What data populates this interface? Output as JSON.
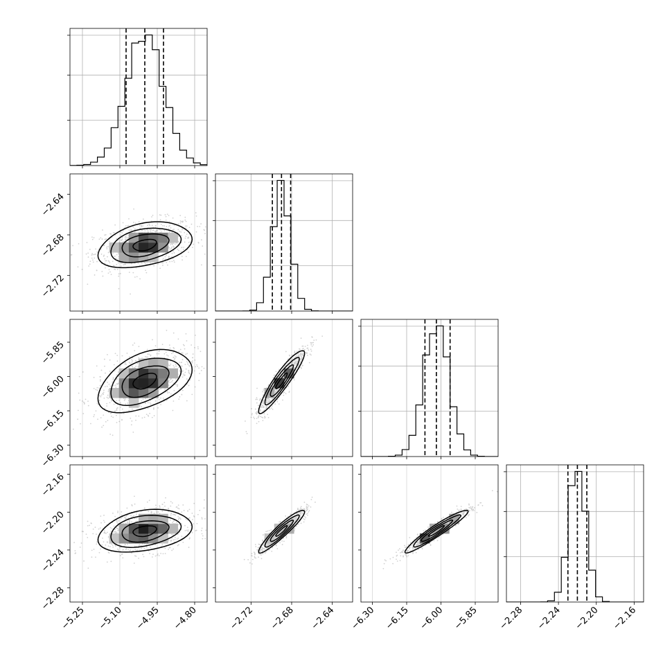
{
  "chart_data": {
    "type": "corner",
    "parameters": [
      {
        "median": -5.0,
        "q16": -5.075,
        "q84": -4.925,
        "sigma": 0.075,
        "range": [
          -5.3,
          -4.75
        ],
        "ticks": [
          -5.25,
          -5.1,
          -4.95,
          -4.8
        ],
        "tick_labels": [
          "−5.25",
          "−5.10",
          "−4.95",
          "−4.80"
        ]
      },
      {
        "median": -2.69,
        "q16": -2.699,
        "q84": -2.681,
        "sigma": 0.009,
        "range": [
          -2.755,
          -2.62
        ],
        "ticks": [
          -2.72,
          -2.68,
          -2.64
        ],
        "tick_labels": [
          "−2.72",
          "−2.68",
          "−2.64"
        ]
      },
      {
        "median": -6.02,
        "q16": -6.07,
        "q84": -5.96,
        "sigma": 0.055,
        "range": [
          -6.35,
          -5.75
        ],
        "ticks": [
          -6.3,
          -6.15,
          -6.0,
          -5.85
        ],
        "tick_labels": [
          "−6.30",
          "−6.15",
          "−6.00",
          "−5.85"
        ]
      },
      {
        "median": -2.22,
        "q16": -2.23,
        "q84": -2.21,
        "sigma": 0.009,
        "range": [
          -2.295,
          -2.15
        ],
        "ticks": [
          -2.28,
          -2.24,
          -2.2,
          -2.16
        ],
        "tick_labels": [
          "−2.28",
          "−2.24",
          "−2.20",
          "−2.16"
        ]
      }
    ],
    "correlations": [
      [
        1.0,
        0.35,
        0.45,
        0.3
      ],
      [
        0.35,
        1.0,
        0.92,
        0.93
      ],
      [
        0.45,
        0.92,
        1.0,
        0.95
      ],
      [
        0.3,
        0.93,
        0.95,
        1.0
      ]
    ],
    "contour_levels_sigma": [
      0.5,
      1.0,
      1.5,
      2.0
    ],
    "quantiles": [
      0.16,
      0.5,
      0.84
    ],
    "grid": true,
    "title": "",
    "xlabel": "",
    "ylabel": ""
  }
}
